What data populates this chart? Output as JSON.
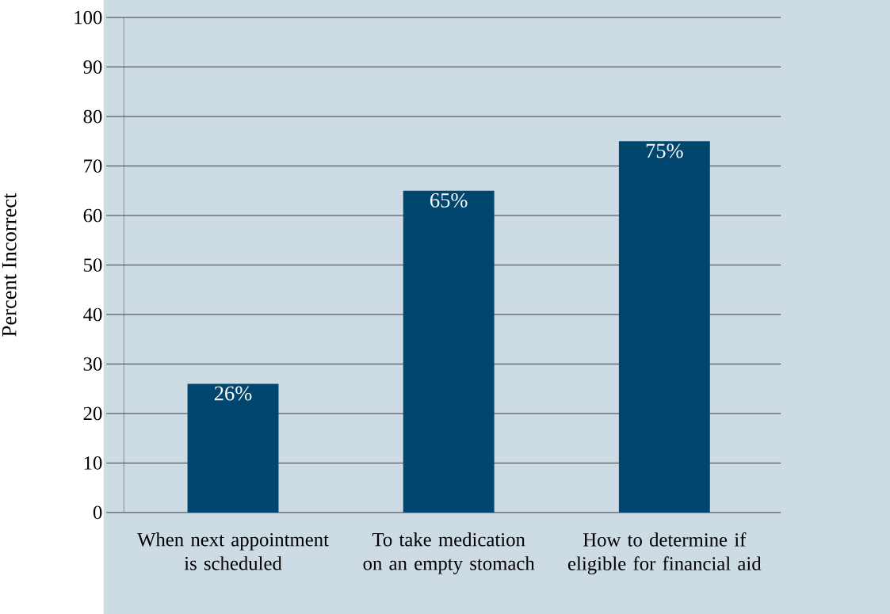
{
  "chart_data": {
    "type": "bar",
    "ylabel": "Percent Incorrect",
    "categories": [
      "When next appointment is scheduled",
      "To take medication on an empty stomach",
      "How to determine if eligible for financial aid"
    ],
    "values": [
      26,
      65,
      75
    ],
    "value_labels": [
      "26%",
      "65%",
      "75%"
    ],
    "color": "#00466e",
    "ylim": [
      0,
      100
    ],
    "yticks": [
      0,
      10,
      20,
      30,
      40,
      50,
      60,
      70,
      80,
      90,
      100
    ],
    "grid": "y"
  }
}
